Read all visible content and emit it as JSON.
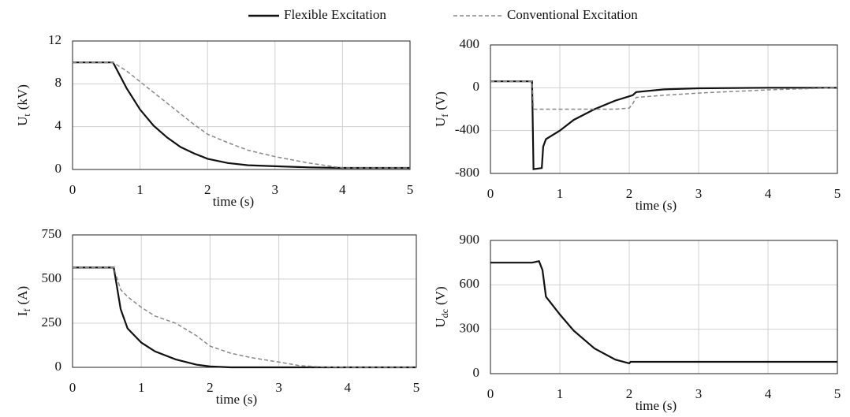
{
  "legend": [
    {
      "name": "Flexible Excitation",
      "color": "#111111",
      "dash": "none"
    },
    {
      "name": "Conventional Excitation",
      "color": "#888888",
      "dash": "5,3"
    }
  ],
  "chart_data": [
    {
      "type": "line",
      "ylabel": "U",
      "ylabel_sub": "t",
      "ylabel_unit": "(kV)",
      "xlabel": "time (s)",
      "xlim": [
        0,
        5
      ],
      "xticks": [
        0,
        1,
        2,
        3,
        4,
        5
      ],
      "ylim": [
        0,
        12
      ],
      "yticks": [
        0,
        4,
        8,
        12
      ],
      "grid": true,
      "x": [
        0,
        0.6,
        0.8,
        1.0,
        1.2,
        1.4,
        1.6,
        1.8,
        2.0,
        2.3,
        2.6,
        3.0,
        3.5,
        4.0,
        5.0
      ],
      "series": [
        {
          "legend": 0,
          "values": [
            10,
            10,
            7.6,
            5.6,
            4.1,
            3.0,
            2.1,
            1.5,
            1.0,
            0.6,
            0.4,
            0.3,
            0.2,
            0.15,
            0.15
          ]
        },
        {
          "legend": 1,
          "values": [
            10,
            10,
            9.2,
            8.2,
            7.2,
            6.2,
            5.2,
            4.2,
            3.3,
            2.5,
            1.8,
            1.2,
            0.6,
            0.15,
            0.15
          ]
        }
      ]
    },
    {
      "type": "line",
      "ylabel": "U",
      "ylabel_sub": "f",
      "ylabel_unit": "(V)",
      "xlabel": "time (s)",
      "xlim": [
        0,
        5
      ],
      "xticks": [
        0,
        1,
        2,
        3,
        4,
        5
      ],
      "ylim": [
        -800,
        400
      ],
      "yticks": [
        -800,
        -400,
        0,
        400
      ],
      "grid": true,
      "x": [
        0,
        0.6,
        0.62,
        0.74,
        0.76,
        0.8,
        1.0,
        1.2,
        1.5,
        1.8,
        2.0,
        2.05,
        2.1,
        2.5,
        3,
        4,
        5
      ],
      "series": [
        {
          "legend": 0,
          "values": [
            60,
            60,
            -760,
            -750,
            -550,
            -480,
            -400,
            -300,
            -200,
            -120,
            -80,
            -70,
            -40,
            -15,
            -5,
            0,
            0
          ]
        },
        {
          "legend": 1,
          "values": [
            60,
            60,
            -200,
            -200,
            -200,
            -200,
            -200,
            -200,
            -200,
            -200,
            -190,
            -150,
            -90,
            -70,
            -50,
            -20,
            0
          ]
        }
      ]
    },
    {
      "type": "line",
      "ylabel": "I",
      "ylabel_sub": "f",
      "ylabel_unit": "(A)",
      "xlabel": "time (s)",
      "xlim": [
        0,
        5
      ],
      "xticks": [
        0,
        1,
        2,
        3,
        4,
        5
      ],
      "ylim": [
        0,
        750
      ],
      "yticks": [
        0,
        250,
        500,
        750
      ],
      "grid": true,
      "x": [
        0,
        0.6,
        0.7,
        0.8,
        1.0,
        1.2,
        1.5,
        1.8,
        2.0,
        2.3,
        2.6,
        3.0,
        3.3,
        3.6,
        4,
        5
      ],
      "series": [
        {
          "legend": 0,
          "values": [
            565,
            565,
            330,
            220,
            140,
            90,
            45,
            15,
            5,
            0,
            0,
            0,
            0,
            0,
            0,
            0
          ]
        },
        {
          "legend": 1,
          "values": [
            565,
            565,
            440,
            400,
            340,
            290,
            250,
            180,
            120,
            80,
            55,
            30,
            10,
            3,
            0,
            0
          ]
        }
      ]
    },
    {
      "type": "line",
      "ylabel": "U",
      "ylabel_sub": "dc",
      "ylabel_unit": "(V)",
      "xlabel": "time (s)",
      "xlim": [
        0,
        5
      ],
      "xticks": [
        0,
        1,
        2,
        3,
        4,
        5
      ],
      "ylim": [
        0,
        900
      ],
      "yticks": [
        0,
        300,
        600,
        900
      ],
      "grid": true,
      "x": [
        0,
        0.6,
        0.7,
        0.75,
        0.8,
        1.0,
        1.2,
        1.5,
        1.8,
        2.0,
        2.02,
        3,
        4,
        5
      ],
      "series": [
        {
          "legend": 0,
          "values": [
            750,
            750,
            760,
            700,
            520,
            400,
            290,
            170,
            95,
            70,
            80,
            80,
            80,
            80
          ]
        }
      ]
    }
  ]
}
